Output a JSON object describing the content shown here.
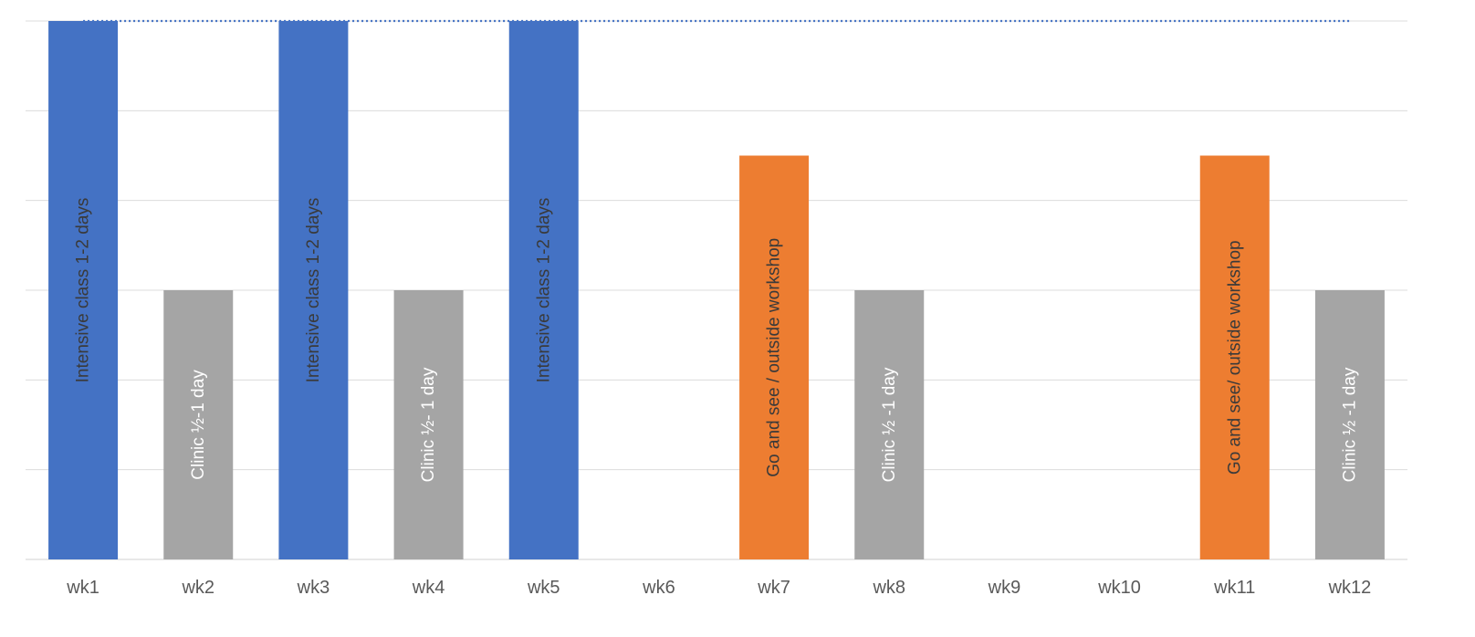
{
  "chart_data": {
    "type": "bar",
    "categories": [
      "wk1",
      "wk2",
      "wk3",
      "wk4",
      "wk5",
      "wk6",
      "wk7",
      "wk8",
      "wk9",
      "wk10",
      "wk11",
      "wk12"
    ],
    "ylim": [
      0,
      6
    ],
    "grid": true,
    "reference_line": {
      "value": 6,
      "style": "dotted",
      "from": "wk1",
      "to": "wk12"
    },
    "series": [
      {
        "color": "#4472C4",
        "values": [
          6,
          null,
          6,
          null,
          6,
          null,
          null,
          null,
          null,
          null,
          null,
          null
        ],
        "labels": [
          "Intensive class 1-2 days",
          "",
          "Intensive class 1-2 days",
          "",
          "Intensive class 1-2 days",
          "",
          "",
          "",
          "",
          "",
          "",
          ""
        ],
        "label_color": "#3a3a3a"
      },
      {
        "color": "#A5A5A5",
        "values": [
          null,
          3,
          null,
          3,
          null,
          null,
          null,
          3,
          null,
          null,
          null,
          3
        ],
        "labels": [
          "",
          "Clinic  ½-1 day",
          "",
          "Clinic ½- 1 day",
          "",
          "",
          "",
          "Clinic ½ -1 day",
          "",
          "",
          "",
          "Clinic ½ -1 day"
        ],
        "label_color": "#ffffff"
      },
      {
        "color": "#ED7D31",
        "values": [
          null,
          null,
          null,
          null,
          null,
          null,
          4.5,
          null,
          null,
          null,
          4.5,
          null
        ],
        "labels": [
          "",
          "",
          "",
          "",
          "",
          "",
          "Go and see / outside workshop",
          "",
          "",
          "",
          "Go and see/ outside workshop",
          ""
        ],
        "label_color": "#3a3a3a"
      }
    ]
  }
}
